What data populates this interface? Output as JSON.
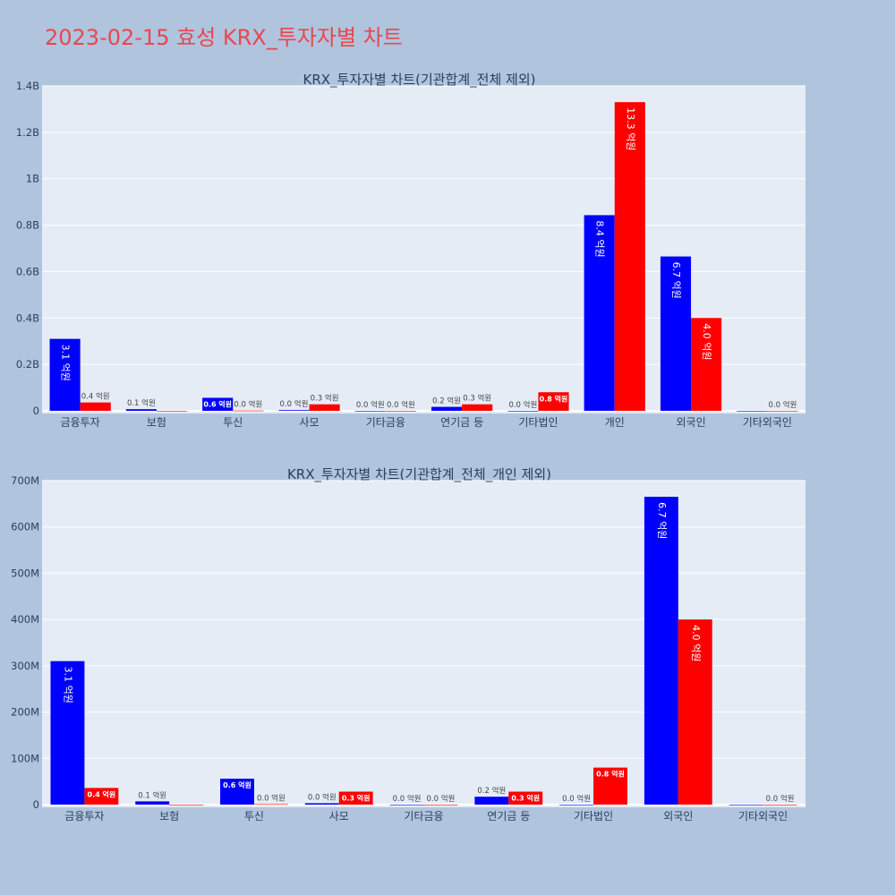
{
  "page_title": "2023-02-15 효성 KRX_투자자별 차트",
  "colors": {
    "background": "#b0c4de",
    "plot_bg": "#e5ecf6",
    "title": "#e8474f",
    "buy": "#0000ff",
    "sell": "#ff0000"
  },
  "chart_data": [
    {
      "type": "bar",
      "title": "KRX_투자자별 차트(기관합계_전체 제외)",
      "categories": [
        "금융투자",
        "보험",
        "투신",
        "사모",
        "기타금융",
        "연기금 등",
        "기타법인",
        "개인",
        "외국인",
        "기타외국인"
      ],
      "ylim": [
        0,
        1400000000
      ],
      "yticks": [
        {
          "value": 0,
          "label": "0"
        },
        {
          "value": 200000000,
          "label": "0.2B"
        },
        {
          "value": 400000000,
          "label": "0.4B"
        },
        {
          "value": 600000000,
          "label": "0.6B"
        },
        {
          "value": 800000000,
          "label": "0.8B"
        },
        {
          "value": 1000000000,
          "label": "1B"
        },
        {
          "value": 1200000000,
          "label": "1.2B"
        },
        {
          "value": 1400000000,
          "label": "1.4B"
        }
      ],
      "grid": true,
      "series": [
        {
          "color": "#0000ff",
          "values": [
            310000000,
            7000000,
            56000000,
            3000000,
            0,
            17000000,
            0,
            843000000,
            665000000,
            0
          ],
          "labels": [
            "3.1 억원",
            "0.1 억원",
            "0.6 억원",
            "0.0 억원",
            "0.0 억원",
            "0.2 억원",
            "0.0 억원",
            "8.4 억원",
            "6.7 억원",
            ""
          ]
        },
        {
          "color": "#ff0000",
          "values": [
            36000000,
            0,
            1000000,
            28000000,
            0,
            28000000,
            80000000,
            1330000000,
            400000000,
            0
          ],
          "labels": [
            "0.4 억원",
            "",
            "0.0 억원",
            "0.3 억원",
            "0.0 억원",
            "0.3 억원",
            "0.8 억원",
            "13.3 억원",
            "4.0 억원",
            "0.0 억원"
          ]
        }
      ]
    },
    {
      "type": "bar",
      "title": "KRX_투자자별 차트(기관합계_전체_개인 제외)",
      "categories": [
        "금융투자",
        "보험",
        "투신",
        "사모",
        "기타금융",
        "연기금 등",
        "기타법인",
        "외국인",
        "기타외국인"
      ],
      "ylim": [
        0,
        700000000
      ],
      "yticks": [
        {
          "value": 0,
          "label": "0"
        },
        {
          "value": 100000000,
          "label": "100M"
        },
        {
          "value": 200000000,
          "label": "200M"
        },
        {
          "value": 300000000,
          "label": "300M"
        },
        {
          "value": 400000000,
          "label": "400M"
        },
        {
          "value": 500000000,
          "label": "500M"
        },
        {
          "value": 600000000,
          "label": "600M"
        },
        {
          "value": 700000000,
          "label": "700M"
        }
      ],
      "grid": true,
      "series": [
        {
          "color": "#0000ff",
          "values": [
            310000000,
            7000000,
            56000000,
            3000000,
            0,
            17000000,
            0,
            665000000,
            0
          ],
          "labels": [
            "3.1 억원",
            "0.1 억원",
            "0.6 억원",
            "0.0 억원",
            "0.0 억원",
            "0.2 억원",
            "0.0 억원",
            "6.7 억원",
            ""
          ]
        },
        {
          "color": "#ff0000",
          "values": [
            36000000,
            0,
            1000000,
            28000000,
            0,
            28000000,
            80000000,
            400000000,
            0
          ],
          "labels": [
            "0.4 억원",
            "",
            "0.0 억원",
            "0.3 억원",
            "0.0 억원",
            "0.3 억원",
            "0.8 억원",
            "4.0 억원",
            "0.0 억원"
          ]
        }
      ]
    }
  ]
}
